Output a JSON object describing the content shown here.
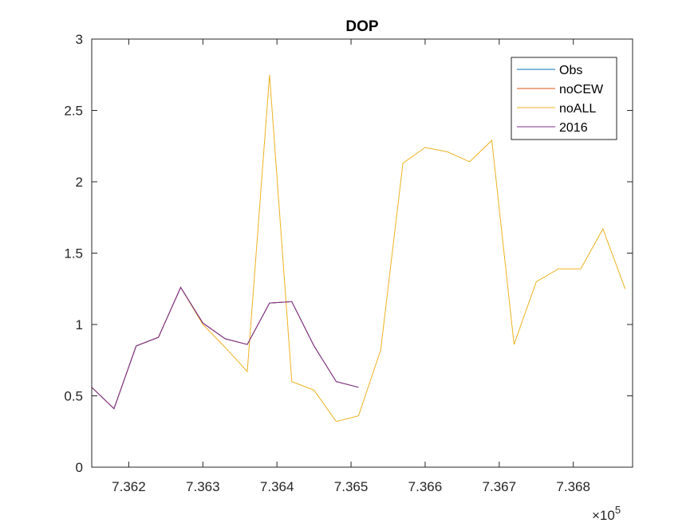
{
  "chart_data": {
    "type": "line",
    "title": "DOP",
    "xlabel": "",
    "ylabel": "",
    "xlim": [
      736150,
      736880
    ],
    "ylim": [
      0,
      3
    ],
    "x_exponent_label": "×10",
    "x_exponent_power": "5",
    "x_ticks": [
      736200,
      736300,
      736400,
      736500,
      736600,
      736700,
      736800
    ],
    "x_tick_labels": [
      "7.362",
      "7.363",
      "7.364",
      "7.365",
      "7.366",
      "7.367",
      "7.368"
    ],
    "y_ticks": [
      0,
      0.5,
      1,
      1.5,
      2,
      2.5,
      3
    ],
    "y_tick_labels": [
      "0",
      "0.5",
      "1",
      "1.5",
      "2",
      "2.5",
      "3"
    ],
    "grid": false,
    "legend_position": "top-right",
    "series": [
      {
        "name": "Obs",
        "color": "#0072BD",
        "x": [
          736150,
          736180,
          736210,
          736240,
          736270,
          736300,
          736330,
          736360,
          736390,
          736420,
          736450,
          736480,
          736510
        ],
        "y": [
          0.56,
          0.41,
          0.85,
          0.91,
          1.26,
          1.01,
          0.9,
          0.86,
          1.15,
          1.16,
          0.85,
          0.6,
          0.56
        ]
      },
      {
        "name": "noCEW",
        "color": "#D95319",
        "x": [
          736150,
          736180,
          736210,
          736240,
          736270,
          736300,
          736330,
          736360,
          736390,
          736420,
          736450,
          736480,
          736510
        ],
        "y": [
          0.56,
          0.41,
          0.85,
          0.91,
          1.26,
          1.01,
          0.9,
          0.86,
          1.15,
          1.16,
          0.85,
          0.6,
          0.56
        ]
      },
      {
        "name": "noALL",
        "color": "#EDB120",
        "x": [
          736150,
          736180,
          736210,
          736240,
          736270,
          736300,
          736330,
          736360,
          736390,
          736420,
          736450,
          736480,
          736510,
          736540,
          736570,
          736600,
          736630,
          736660,
          736690,
          736720,
          736750,
          736780,
          736810,
          736840,
          736870
        ],
        "y": [
          0.56,
          0.41,
          0.85,
          0.91,
          1.26,
          1.0,
          0.84,
          0.67,
          2.75,
          0.6,
          0.54,
          0.32,
          0.36,
          0.82,
          2.13,
          2.24,
          2.21,
          2.14,
          2.29,
          0.86,
          1.3,
          1.39,
          1.39,
          1.67,
          1.25
        ]
      },
      {
        "name": "2016",
        "color": "#7E2F8E",
        "x": [
          736150,
          736180,
          736210,
          736240,
          736270,
          736300,
          736330,
          736360,
          736390,
          736420,
          736450,
          736480,
          736510
        ],
        "y": [
          0.56,
          0.41,
          0.85,
          0.91,
          1.26,
          1.01,
          0.9,
          0.86,
          1.15,
          1.16,
          0.85,
          0.6,
          0.56
        ]
      }
    ]
  }
}
